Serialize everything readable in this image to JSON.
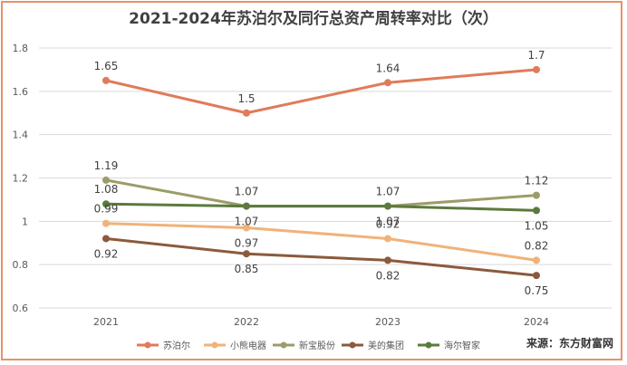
{
  "chart_data": {
    "type": "line",
    "title": "2021-2024年苏泊尔及同行总资产周转率对比（次）",
    "categories": [
      "2021",
      "2022",
      "2023",
      "2024"
    ],
    "ylim": [
      0.6,
      1.8
    ],
    "yticks": [
      "0.6",
      "0.8",
      "1",
      "1.2",
      "1.4",
      "1.6",
      "1.8"
    ],
    "grid": true,
    "legend_position": "bottom-left",
    "series": [
      {
        "name": "苏泊尔",
        "color": "#e07b5a",
        "values": [
          1.65,
          1.5,
          1.64,
          1.7
        ],
        "labels": [
          "1.65",
          "1.5",
          "1.64",
          "1.7"
        ],
        "label_pos": [
          "above",
          "above",
          "above",
          "above"
        ]
      },
      {
        "name": "小熊电器",
        "color": "#f0b27a",
        "values": [
          0.99,
          0.97,
          0.92,
          0.82
        ],
        "labels": [
          "0.99",
          "0.97",
          "0.92",
          "0.82"
        ],
        "label_pos": [
          "above",
          "below",
          "above",
          "above"
        ]
      },
      {
        "name": "新宝股份",
        "color": "#9c9c6a",
        "values": [
          1.19,
          1.07,
          1.07,
          1.12
        ],
        "labels": [
          "1.19",
          "1.07",
          "1.07",
          "1.12"
        ],
        "label_pos": [
          "above",
          "above",
          "above",
          "above"
        ]
      },
      {
        "name": "美的集团",
        "color": "#8b5a3c",
        "values": [
          0.92,
          0.85,
          0.82,
          0.75
        ],
        "labels": [
          "0.92",
          "0.85",
          "0.82",
          "0.75"
        ],
        "label_pos": [
          "below",
          "below",
          "below",
          "below"
        ]
      },
      {
        "name": "海尔智家",
        "color": "#5b7a3e",
        "values": [
          1.08,
          1.07,
          1.07,
          1.05
        ],
        "labels": [
          "1.08",
          "1.07",
          "1.07",
          "1.05"
        ],
        "label_pos": [
          "above",
          "below",
          "below",
          "below"
        ]
      }
    ]
  },
  "source_text": "来源：东方财富网"
}
